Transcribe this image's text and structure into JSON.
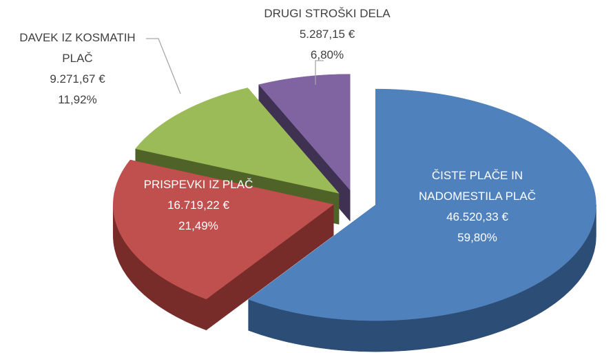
{
  "chart_data": {
    "type": "pie3d",
    "categories": [
      "ČISTE PLAČE IN NADOMESTILA PLAČ",
      "PRISPEVKI IZ PLAČ",
      "DAVEK IZ KOSMATIH PLAČ",
      "DRUGI STROŠKI DELA"
    ],
    "values": [
      46520.33,
      16719.22,
      9271.67,
      5287.15
    ],
    "value_labels": [
      "46.520,33 €",
      "16.719,22 €",
      "9.271,67 €",
      "5.287,15 €"
    ],
    "percentages": [
      59.8,
      21.49,
      11.92,
      6.8
    ],
    "percentage_labels": [
      "59,80%",
      "21,49%",
      "11,92%",
      "6,80%"
    ],
    "colors": [
      "#4f81bd",
      "#c0504d",
      "#9bbb59",
      "#8064a2"
    ],
    "side_colors": [
      "#2c4d75",
      "#772c2a",
      "#4f6228",
      "#3f3151"
    ]
  }
}
